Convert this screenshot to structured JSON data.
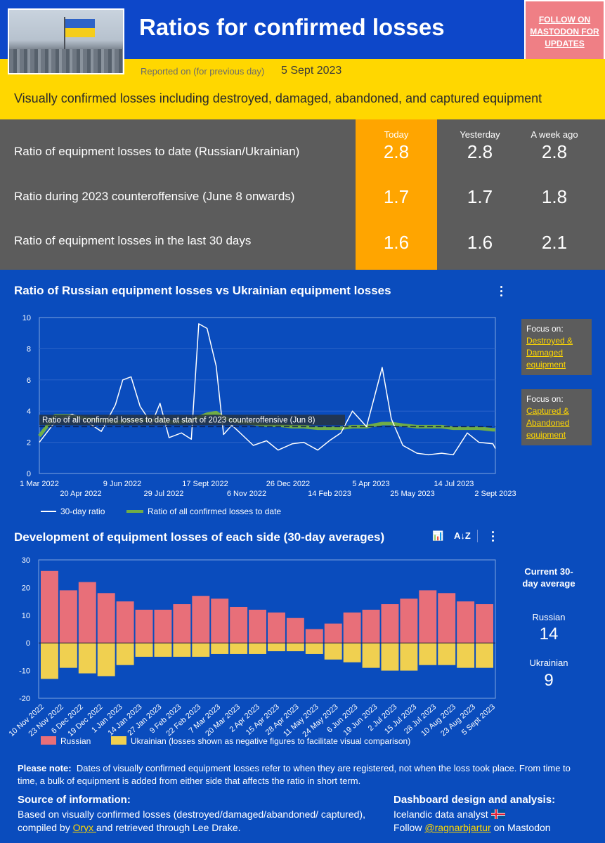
{
  "header": {
    "title": "Ratios for confirmed losses",
    "follow": "FOLLOW ON MASTODON FOR UPDATES",
    "reported_label": "Reported on (for previous day)",
    "reported_date": "5 Sept 2023",
    "subtitle": "Visually confirmed losses including destroyed, damaged, abandoned, and captured equipment"
  },
  "ratios": {
    "columns": [
      "Today",
      "Yesterday",
      "A week ago"
    ],
    "rows": [
      {
        "label": "Ratio of equipment losses to date (Russian/Ukrainian)",
        "today": "2.8",
        "yesterday": "2.8",
        "week_ago": "2.8"
      },
      {
        "label": "Ratio during 2023 counteroffensive (June 8 onwards)",
        "today": "1.7",
        "yesterday": "1.7",
        "week_ago": "1.8"
      },
      {
        "label": "Ratio of equipment losses in the last 30 days",
        "today": "1.6",
        "yesterday": "1.6",
        "week_ago": "2.1"
      }
    ]
  },
  "chart1": {
    "focus_destroyed": {
      "label": "Focus on:",
      "link": "Destroyed & Damaged equipment"
    },
    "focus_captured": {
      "label": "Focus on:",
      "link": "Captured & Abandoned equipment"
    }
  },
  "chart2": {
    "current_label": "Current 30-day average",
    "russian_label": "Russian",
    "russian_value": "14",
    "ukrainian_label": "Ukrainian",
    "ukrainian_value": "9"
  },
  "footer": {
    "note_label": "Please note:",
    "note_text": "Dates of visually confirmed equipment losses refer to when they are registered, not when the loss took place. From time to time, a bulk of equipment is added from either side that affects the ratio in short term.",
    "source_head": "Source of information:",
    "source_pre": "Based on visually confirmed losses (destroyed/damaged/abandoned/ captured), compiled by ",
    "source_link": "Oryx ",
    "source_post": "and retrieved through Lee Drake.",
    "design_head": "Dashboard design and analysis:",
    "design_line1": "Icelandic data analyst",
    "design_follow": "Follow ",
    "design_link": "@ragnarbjartur",
    "design_post": " on Mastodon"
  },
  "chart_data": [
    {
      "type": "line",
      "title": "Ratio of Russian equipment losses vs Ukrainian equipment losses",
      "x_tick_labels": [
        "1 Mar 2022",
        "20 Apr 2022",
        "9 Jun 2022",
        "29 Jul 2022",
        "17 Sept 2022",
        "6 Nov 2022",
        "26 Dec 2022",
        "14 Feb 2023",
        "5 Apr 2023",
        "25 May 2023",
        "14 Jul 2023",
        "2 Sept 2023"
      ],
      "ylim": [
        0,
        10
      ],
      "y_ticks": [
        0,
        2,
        4,
        6,
        8,
        10
      ],
      "reference_line": {
        "value": 3.0,
        "label": "Ratio of all confirmed losses to date at start of 2023 counteroffensive (Jun 8)"
      },
      "legend": [
        "30-day ratio",
        "Ratio of all confirmed losses to date"
      ],
      "x_dates": [
        "2022-03-01",
        "2022-03-20",
        "2022-04-10",
        "2022-05-01",
        "2022-05-15",
        "2022-06-01",
        "2022-06-10",
        "2022-06-20",
        "2022-07-01",
        "2022-07-15",
        "2022-07-25",
        "2022-08-05",
        "2022-08-20",
        "2022-09-01",
        "2022-09-10",
        "2022-09-20",
        "2022-10-01",
        "2022-10-10",
        "2022-10-20",
        "2022-11-01",
        "2022-11-15",
        "2022-12-01",
        "2022-12-15",
        "2023-01-01",
        "2023-01-15",
        "2023-02-01",
        "2023-02-15",
        "2023-03-01",
        "2023-03-15",
        "2023-04-01",
        "2023-04-10",
        "2023-04-20",
        "2023-05-01",
        "2023-05-15",
        "2023-06-01",
        "2023-06-15",
        "2023-07-01",
        "2023-07-15",
        "2023-08-01",
        "2023-08-15",
        "2023-09-01",
        "2023-09-04"
      ],
      "series": [
        {
          "name": "30-day ratio",
          "color": "#ffffff",
          "values": [
            2.0,
            3.3,
            3.8,
            3.2,
            2.7,
            4.4,
            6.0,
            6.2,
            4.3,
            3.2,
            4.5,
            2.3,
            2.6,
            2.2,
            9.6,
            9.3,
            6.9,
            2.5,
            3.1,
            2.5,
            1.8,
            2.1,
            1.5,
            1.9,
            2.0,
            1.5,
            2.1,
            2.6,
            4.0,
            3.0,
            4.8,
            6.8,
            3.5,
            1.8,
            1.3,
            1.2,
            1.3,
            1.2,
            2.6,
            2.0,
            1.9,
            1.6
          ]
        },
        {
          "name": "Ratio of all confirmed losses to date",
          "color": "#70ad47",
          "values": [
            2.4,
            3.7,
            3.7,
            3.5,
            3.4,
            3.3,
            3.3,
            3.4,
            3.4,
            3.4,
            3.4,
            3.3,
            3.3,
            3.4,
            3.6,
            3.8,
            3.9,
            3.6,
            3.4,
            3.3,
            3.2,
            3.1,
            3.1,
            3.0,
            3.0,
            2.9,
            2.9,
            2.9,
            3.0,
            3.0,
            3.1,
            3.2,
            3.2,
            3.1,
            3.0,
            3.0,
            3.0,
            2.9,
            2.9,
            2.9,
            2.8,
            2.8
          ]
        }
      ]
    },
    {
      "type": "bar",
      "title": "Development of equipment losses of each side (30-day averages)",
      "ylim": [
        -20,
        30
      ],
      "y_ticks": [
        -20,
        -10,
        0,
        10,
        20,
        30
      ],
      "categories": [
        "10 Nov 2022",
        "23 Nov 2022",
        "6 Dec 2022",
        "19 Dec 2022",
        "1 Jan 2023",
        "14 Jan 2023",
        "27 Jan 2023",
        "9 Feb 2023",
        "22 Feb 2023",
        "7 Mar 2023",
        "20 Mar 2023",
        "2 Apr 2023",
        "15 Apr 2023",
        "28 Apr 2023",
        "11 May 2023",
        "24 May 2023",
        "6 Jun 2023",
        "19 Jun 2023",
        "2 Jul 2023",
        "15 Jul 2023",
        "28 Jul 2023",
        "10 Aug 2023",
        "23 Aug 2023",
        "5 Sept 2023"
      ],
      "legend": [
        "Russian",
        "Ukrainian (losses shown as negative figures to facilitate visual comparison)"
      ],
      "series": [
        {
          "name": "Russian",
          "color": "#e86f79",
          "values": [
            26,
            19,
            22,
            18,
            15,
            12,
            12,
            14,
            17,
            16,
            13,
            12,
            11,
            9,
            5,
            7,
            11,
            12,
            14,
            16,
            19,
            18,
            15,
            14
          ]
        },
        {
          "name": "Ukrainian",
          "color": "#f0d050",
          "values": [
            -13,
            -9,
            -11,
            -12,
            -8,
            -5,
            -5,
            -5,
            -5,
            -4,
            -4,
            -4,
            -3,
            -3,
            -4,
            -6,
            -7,
            -9,
            -10,
            -10,
            -8,
            -8,
            -9,
            -9
          ]
        }
      ]
    }
  ]
}
